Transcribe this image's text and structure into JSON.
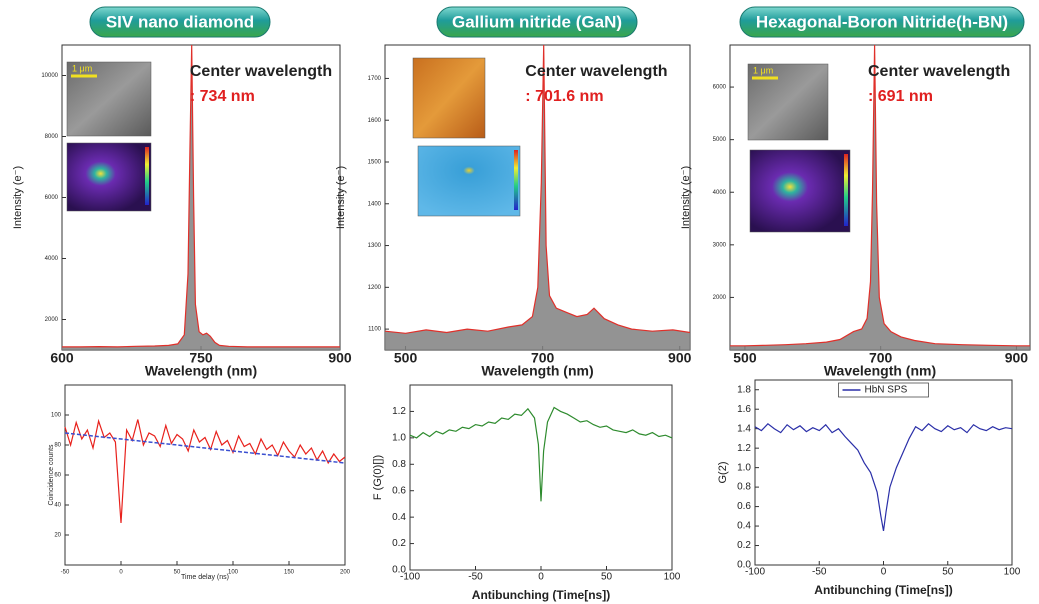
{
  "chart_data": [
    {
      "type": "line",
      "title": "SIV nano diamond",
      "xlabel": "Wavelength (nm)",
      "ylabel": "Intensity (e⁻)",
      "annotation": "Center wavelength",
      "annotation_value": ": 734 nm",
      "inset_label": "1 μm",
      "xlim": [
        600,
        900
      ],
      "xticks": [
        600,
        750,
        900
      ],
      "ylim": [
        1000,
        11000
      ],
      "yticks": [
        2000,
        4000,
        6000,
        8000,
        10000
      ],
      "series": [
        {
          "color": "#e0302a",
          "area_color": "#808080",
          "x": [
            600,
            620,
            640,
            660,
            680,
            700,
            715,
            725,
            732,
            736,
            738,
            740,
            742,
            744,
            748,
            752,
            756,
            760,
            765,
            770,
            780,
            800,
            830,
            860,
            900
          ],
          "values": [
            1100,
            1100,
            1110,
            1100,
            1120,
            1130,
            1150,
            1200,
            1500,
            3500,
            7500,
            11000,
            6000,
            2500,
            1600,
            1500,
            1550,
            1450,
            1250,
            1150,
            1120,
            1100,
            1100,
            1100,
            1100
          ]
        }
      ]
    },
    {
      "type": "line",
      "title": "Gallium nitride (GaN)",
      "xlabel": "Wavelength (nm)",
      "ylabel": "Intensity (e⁻)",
      "annotation": "Center wavelength",
      "annotation_value": ": 701.6 nm",
      "xlim": [
        470,
        915
      ],
      "xticks": [
        500,
        700,
        900
      ],
      "ylim": [
        1050,
        1780
      ],
      "yticks": [
        1100,
        1200,
        1300,
        1400,
        1500,
        1600,
        1700
      ],
      "series": [
        {
          "color": "#e0302a",
          "area_color": "#808080",
          "x": [
            470,
            500,
            530,
            560,
            590,
            620,
            650,
            670,
            685,
            693,
            698,
            701.6,
            705,
            710,
            720,
            735,
            750,
            765,
            775,
            790,
            810,
            830,
            860,
            890,
            915
          ],
          "values": [
            1095,
            1090,
            1098,
            1092,
            1100,
            1095,
            1105,
            1110,
            1130,
            1200,
            1450,
            1780,
            1300,
            1180,
            1150,
            1140,
            1130,
            1135,
            1150,
            1125,
            1110,
            1100,
            1095,
            1098,
            1092
          ]
        }
      ]
    },
    {
      "type": "line",
      "title": "Hexagonal-Boron Nitride(h-BN)",
      "xlabel": "Wavelength (nm)",
      "ylabel": "Intensity (e⁻)",
      "annotation": "Center wavelength",
      "annotation_value": ": 691 nm",
      "inset_label": "1 μm",
      "xlim": [
        478,
        920
      ],
      "xticks": [
        500,
        700,
        900
      ],
      "ylim": [
        1000,
        6800
      ],
      "yticks": [
        2000,
        3000,
        4000,
        5000,
        6000
      ],
      "series": [
        {
          "color": "#e0302a",
          "area_color": "#808080",
          "x": [
            478,
            500,
            530,
            560,
            590,
            620,
            640,
            660,
            672,
            680,
            685,
            688,
            691,
            694,
            698,
            705,
            715,
            730,
            750,
            780,
            820,
            860,
            900,
            920
          ],
          "values": [
            1080,
            1080,
            1090,
            1100,
            1120,
            1150,
            1200,
            1350,
            1400,
            1600,
            2300,
            4000,
            6800,
            3800,
            2000,
            1500,
            1350,
            1250,
            1180,
            1120,
            1100,
            1090,
            1080,
            1080
          ]
        }
      ]
    },
    {
      "type": "line",
      "xlabel": "Time delay (ns)",
      "ylabel": "Coincidence counts",
      "xlim": [
        -50,
        200
      ],
      "xticks": [
        -50,
        0,
        50,
        100,
        150,
        200
      ],
      "ylim": [
        0,
        120
      ],
      "yticks": [
        20,
        40,
        60,
        80,
        100
      ],
      "series": [
        {
          "color": "#e8211c",
          "x": [
            -50,
            -45,
            -40,
            -35,
            -30,
            -25,
            -20,
            -15,
            -10,
            -5,
            0,
            5,
            10,
            15,
            20,
            25,
            30,
            35,
            40,
            45,
            50,
            55,
            60,
            65,
            70,
            75,
            80,
            85,
            90,
            95,
            100,
            105,
            110,
            115,
            120,
            125,
            130,
            135,
            140,
            145,
            150,
            155,
            160,
            165,
            170,
            175,
            180,
            185,
            190,
            195,
            200
          ],
          "values": [
            92,
            80,
            95,
            84,
            90,
            78,
            96,
            85,
            88,
            82,
            28,
            90,
            83,
            97,
            80,
            88,
            86,
            79,
            93,
            81,
            87,
            84,
            76,
            90,
            82,
            85,
            77,
            89,
            80,
            83,
            75,
            86,
            79,
            81,
            74,
            84,
            77,
            80,
            73,
            82,
            76,
            72,
            80,
            74,
            78,
            70,
            76,
            68,
            74,
            69,
            72
          ]
        },
        {
          "color": "#3a4fd0",
          "x": [
            -50,
            200
          ],
          "values": [
            88,
            68
          ]
        }
      ]
    },
    {
      "type": "line",
      "xlabel": "Antibunching (Time[ns])",
      "ylabel": "F (G(0)[])",
      "xlim": [
        -100,
        100
      ],
      "xticks": [
        -100,
        -50,
        0,
        50,
        100
      ],
      "ylim": [
        0,
        1.4
      ],
      "yticks": [
        {
          "value": 0,
          "label": "0.0"
        },
        {
          "value": 0.2,
          "label": "0.2"
        },
        {
          "value": 0.4,
          "label": "0.4"
        },
        {
          "value": 0.6,
          "label": "0.6"
        },
        {
          "value": 0.8,
          "label": "0.8"
        },
        {
          "value": 1,
          "label": "1.0"
        },
        {
          "value": 1.2,
          "label": "1.2"
        }
      ],
      "series": [
        {
          "color": "#2e8b2e",
          "x": [
            -100,
            -95,
            -90,
            -85,
            -80,
            -75,
            -70,
            -65,
            -60,
            -55,
            -50,
            -45,
            -40,
            -35,
            -30,
            -25,
            -20,
            -15,
            -10,
            -5,
            -2,
            0,
            2,
            5,
            10,
            15,
            20,
            25,
            30,
            35,
            40,
            45,
            50,
            55,
            60,
            65,
            70,
            75,
            80,
            85,
            90,
            95,
            100
          ],
          "values": [
            1.02,
            1.0,
            1.04,
            1.01,
            1.05,
            1.03,
            1.06,
            1.05,
            1.08,
            1.07,
            1.1,
            1.09,
            1.12,
            1.11,
            1.15,
            1.14,
            1.18,
            1.17,
            1.22,
            1.15,
            0.95,
            0.52,
            0.9,
            1.12,
            1.23,
            1.2,
            1.18,
            1.15,
            1.12,
            1.13,
            1.1,
            1.08,
            1.09,
            1.06,
            1.05,
            1.04,
            1.06,
            1.03,
            1.02,
            1.04,
            1.01,
            1.02,
            1.0
          ]
        }
      ]
    },
    {
      "type": "line",
      "xlabel": "Antibunching (Time[ns])",
      "ylabel": "G(2)",
      "legend": "top",
      "xlim": [
        -100,
        100
      ],
      "xticks": [
        -100,
        -50,
        0,
        50,
        100
      ],
      "ylim": [
        0,
        1.9
      ],
      "yticks": [
        {
          "value": 0,
          "label": "0.0"
        },
        {
          "value": 0.2,
          "label": "0.2"
        },
        {
          "value": 0.4,
          "label": "0.4"
        },
        {
          "value": 0.6,
          "label": "0.6"
        },
        {
          "value": 0.8,
          "label": "0.8"
        },
        {
          "value": 1,
          "label": "1.0"
        },
        {
          "value": 1.2,
          "label": "1.2"
        },
        {
          "value": 1.4,
          "label": "1.4"
        },
        {
          "value": 1.6,
          "label": "1.6"
        },
        {
          "value": 1.8,
          "label": "1.8"
        }
      ],
      "series": [
        {
          "name": "HbN SPS",
          "color": "#2a2fa8",
          "x": [
            -100,
            -95,
            -90,
            -85,
            -80,
            -75,
            -70,
            -65,
            -60,
            -55,
            -50,
            -45,
            -40,
            -35,
            -30,
            -25,
            -20,
            -15,
            -10,
            -5,
            -2,
            0,
            2,
            5,
            10,
            15,
            20,
            25,
            30,
            35,
            40,
            45,
            50,
            55,
            60,
            65,
            70,
            75,
            80,
            85,
            90,
            95,
            100
          ],
          "values": [
            1.42,
            1.38,
            1.45,
            1.4,
            1.36,
            1.44,
            1.39,
            1.43,
            1.37,
            1.41,
            1.38,
            1.44,
            1.36,
            1.4,
            1.32,
            1.25,
            1.18,
            1.05,
            0.95,
            0.75,
            0.5,
            0.35,
            0.55,
            0.8,
            1.0,
            1.15,
            1.3,
            1.42,
            1.38,
            1.45,
            1.4,
            1.37,
            1.43,
            1.39,
            1.41,
            1.36,
            1.44,
            1.4,
            1.38,
            1.42,
            1.39,
            1.41,
            1.4
          ]
        }
      ]
    }
  ]
}
